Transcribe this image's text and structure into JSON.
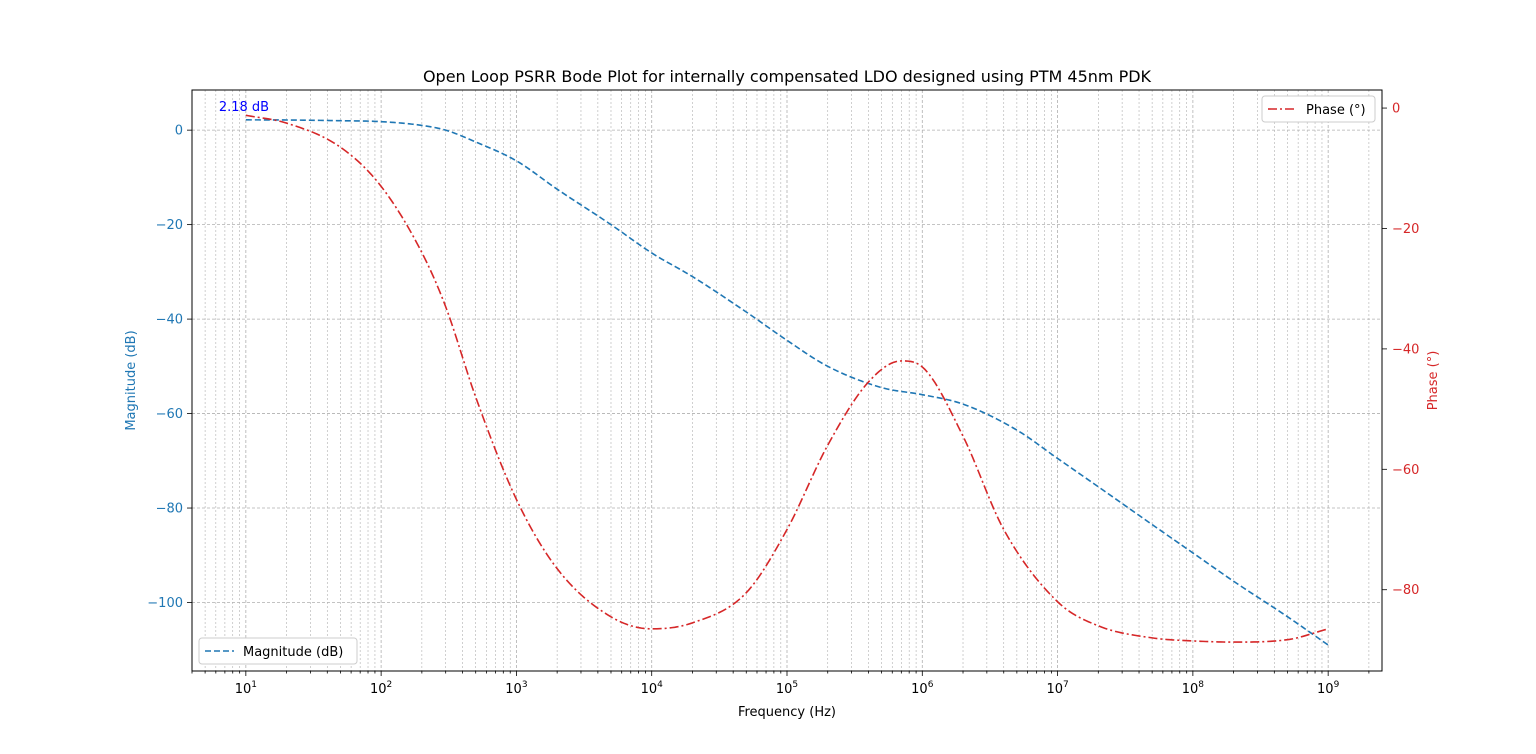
{
  "chart_data": {
    "type": "line",
    "title": "Open Loop PSRR Bode Plot for internally compensated LDO designed using PTM 45nm PDK",
    "xlabel": "Frequency (Hz)",
    "xscale": "log",
    "xlim": [
      4,
      2500000000
    ],
    "xticks": [
      {
        "value": 10,
        "exp": "1"
      },
      {
        "value": 100,
        "exp": "2"
      },
      {
        "value": 1000,
        "exp": "3"
      },
      {
        "value": 10000,
        "exp": "4"
      },
      {
        "value": 100000,
        "exp": "5"
      },
      {
        "value": 1000000,
        "exp": "6"
      },
      {
        "value": 10000000,
        "exp": "7"
      },
      {
        "value": 100000000,
        "exp": "8"
      },
      {
        "value": 1000000000,
        "exp": "9"
      }
    ],
    "grid": true,
    "axes": {
      "left": {
        "label": "Magnitude (dB)",
        "color": "#1f77b4",
        "ylim": [
          -114.5,
          8.5
        ],
        "ticks": [
          {
            "value": 0,
            "label": "0"
          },
          {
            "value": -20,
            "label": "−20"
          },
          {
            "value": -40,
            "label": "−40"
          },
          {
            "value": -60,
            "label": "−60"
          },
          {
            "value": -80,
            "label": "−80"
          },
          {
            "value": -100,
            "label": "−100"
          }
        ]
      },
      "right": {
        "label": "Phase (°)",
        "color": "#d62728",
        "ylim": [
          -93.5,
          3.0
        ],
        "ticks": [
          {
            "value": 0,
            "label": "0"
          },
          {
            "value": -20,
            "label": "−20"
          },
          {
            "value": -40,
            "label": "−40"
          },
          {
            "value": -60,
            "label": "−60"
          },
          {
            "value": -80,
            "label": "−80"
          }
        ]
      }
    },
    "series": [
      {
        "name": "Magnitude (dB)",
        "axis": "left",
        "color": "#1f77b4",
        "dash": "dashed",
        "legend": "bottom-left",
        "x": [
          10,
          20,
          50,
          100,
          200,
          300,
          500,
          1000,
          2000,
          5000,
          10000,
          20000,
          50000,
          100000,
          200000,
          500000,
          1000000,
          2000000,
          5000000,
          10000000,
          20000000,
          50000000,
          100000000,
          200000000,
          500000000,
          1000000000
        ],
        "y": [
          2.18,
          2.15,
          2.0,
          1.8,
          1.0,
          0,
          -2.5,
          -6.5,
          -12.5,
          -20.0,
          -26.0,
          -31.0,
          -38.5,
          -44.5,
          -50.0,
          -54.5,
          -56.0,
          -58.0,
          -63.5,
          -69.5,
          -75.5,
          -83.5,
          -89.5,
          -95.5,
          -103.0,
          -109.0
        ]
      },
      {
        "name": "Phase (°)",
        "axis": "right",
        "color": "#d62728",
        "dash": "dashdot",
        "legend": "top-right",
        "x": [
          10,
          20,
          50,
          100,
          200,
          300,
          500,
          1000,
          2000,
          5000,
          10000,
          20000,
          50000,
          100000,
          200000,
          400000,
          700000,
          1000000,
          2000000,
          4000000,
          10000000,
          20000000,
          50000000,
          100000000,
          200000000,
          500000000,
          1000000000
        ],
        "y": [
          -1.2,
          -2.5,
          -6.5,
          -13.0,
          -24.0,
          -33.0,
          -48.0,
          -65.0,
          -76.5,
          -84.5,
          -86.5,
          -85.5,
          -80.5,
          -70.0,
          -56.0,
          -45.5,
          -42.0,
          -43.0,
          -54.5,
          -70.0,
          -82.0,
          -86.0,
          -88.0,
          -88.5,
          -88.7,
          -88.3,
          -86.5
        ]
      }
    ],
    "annotation": {
      "text": "2.18 dB",
      "color": "#0000ff",
      "x": 10,
      "y": 2.18
    }
  }
}
